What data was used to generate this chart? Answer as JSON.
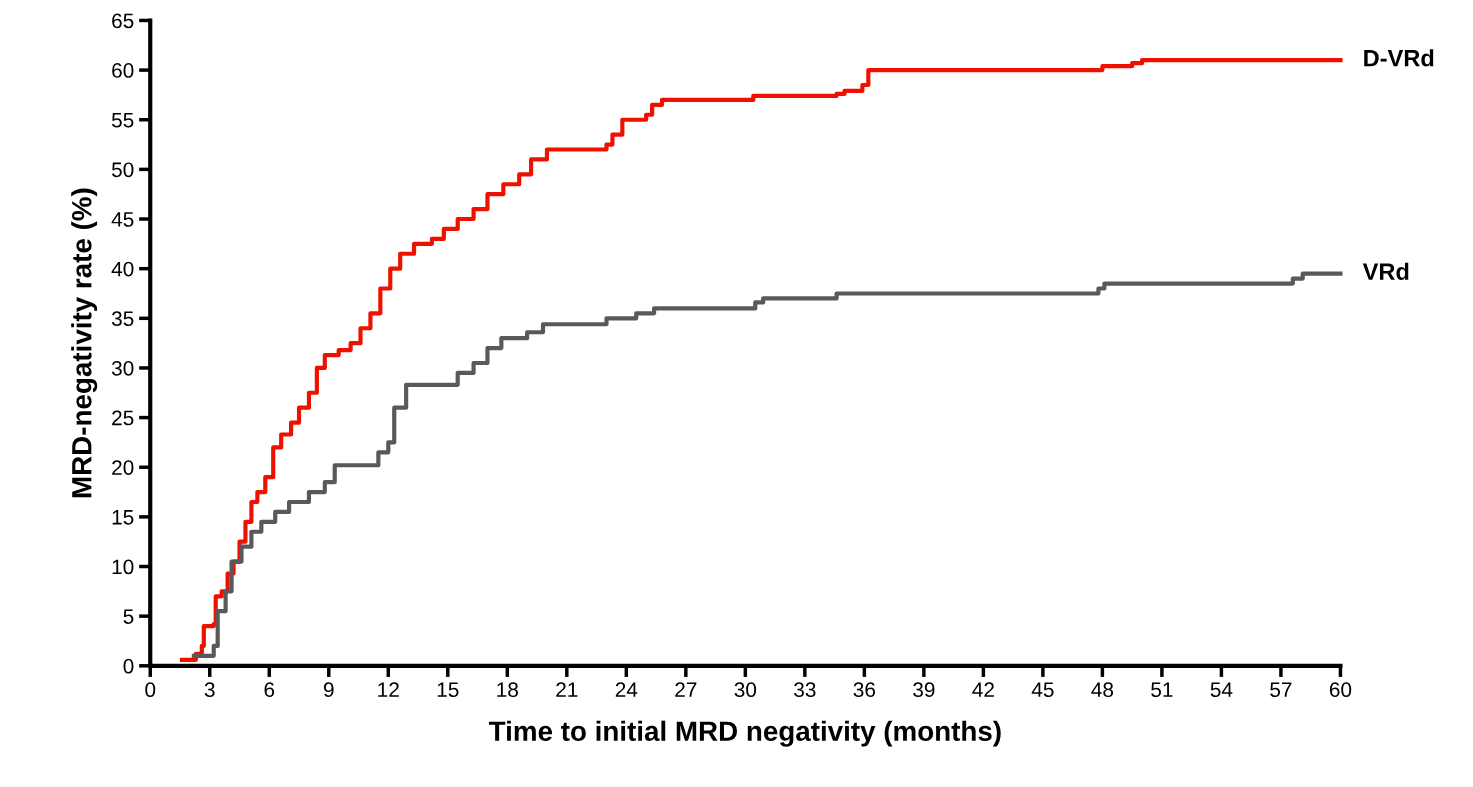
{
  "chart_data": {
    "type": "step",
    "xlabel": "Time to initial MRD negativity (months)",
    "ylabel": "MRD-negativity rate (%)",
    "xlim": [
      0,
      60
    ],
    "ylim": [
      0,
      65
    ],
    "xticks": [
      0,
      3,
      6,
      9,
      12,
      15,
      18,
      21,
      24,
      27,
      30,
      33,
      36,
      39,
      42,
      45,
      48,
      51,
      54,
      57,
      60
    ],
    "yticks": [
      0,
      5,
      10,
      15,
      20,
      25,
      30,
      35,
      40,
      45,
      50,
      55,
      60,
      65
    ],
    "grid": false,
    "legend": false,
    "marker": "none",
    "line_style": "solid",
    "series": [
      {
        "name": "D-VRd",
        "color": "#ee1100",
        "x": [
          1.6,
          2.3,
          2.6,
          2.7,
          3.2,
          3.3,
          3.6,
          3.9,
          4.2,
          4.5,
          4.8,
          5.1,
          5.4,
          5.8,
          6.2,
          6.6,
          7.1,
          7.5,
          8.0,
          8.4,
          8.8,
          9.5,
          10.1,
          10.6,
          11.1,
          11.6,
          12.1,
          12.6,
          13.3,
          14.2,
          14.8,
          15.5,
          16.3,
          17.0,
          17.8,
          18.6,
          19.2,
          20.0,
          23.0,
          23.3,
          23.8,
          25.0,
          25.3,
          25.8,
          30.4,
          34.6,
          35.0,
          35.9,
          36.2,
          48.0,
          49.5,
          50.0,
          60.0
        ],
        "values": [
          0.6,
          1.2,
          2,
          4,
          4.2,
          7,
          7.5,
          9.3,
          10.5,
          12.5,
          14.5,
          16.5,
          17.5,
          19,
          22,
          23.3,
          24.5,
          26,
          27.5,
          30,
          31.3,
          31.8,
          32.5,
          34,
          35.5,
          38,
          40,
          41.5,
          42.5,
          43,
          44,
          45,
          46,
          47.5,
          48.5,
          49.5,
          51,
          52,
          52.5,
          53.5,
          55,
          55.5,
          56.5,
          57,
          57.4,
          57.6,
          57.9,
          58.5,
          60,
          60.4,
          60.7,
          61,
          61
        ]
      },
      {
        "name": "VRd",
        "color": "#595959",
        "x": [
          2.2,
          3.2,
          3.4,
          3.8,
          4.1,
          4.6,
          5.1,
          5.6,
          6.3,
          7.0,
          8.0,
          8.8,
          9.3,
          11.5,
          12.0,
          12.3,
          12.9,
          15.5,
          16.3,
          17.0,
          17.7,
          19.0,
          19.8,
          23.0,
          24.5,
          25.4,
          30.5,
          30.9,
          34.6,
          47.8,
          48.1,
          57.6,
          58.1,
          60.0
        ],
        "values": [
          1,
          2,
          5.5,
          7.5,
          10.5,
          12,
          13.5,
          14.5,
          15.5,
          16.5,
          17.5,
          18.5,
          20.2,
          21.5,
          22.5,
          26,
          28.3,
          29.5,
          30.5,
          32,
          33,
          33.6,
          34.4,
          35,
          35.5,
          36,
          36.6,
          37,
          37.5,
          38,
          38.5,
          39,
          39.5,
          39.5
        ]
      }
    ]
  }
}
